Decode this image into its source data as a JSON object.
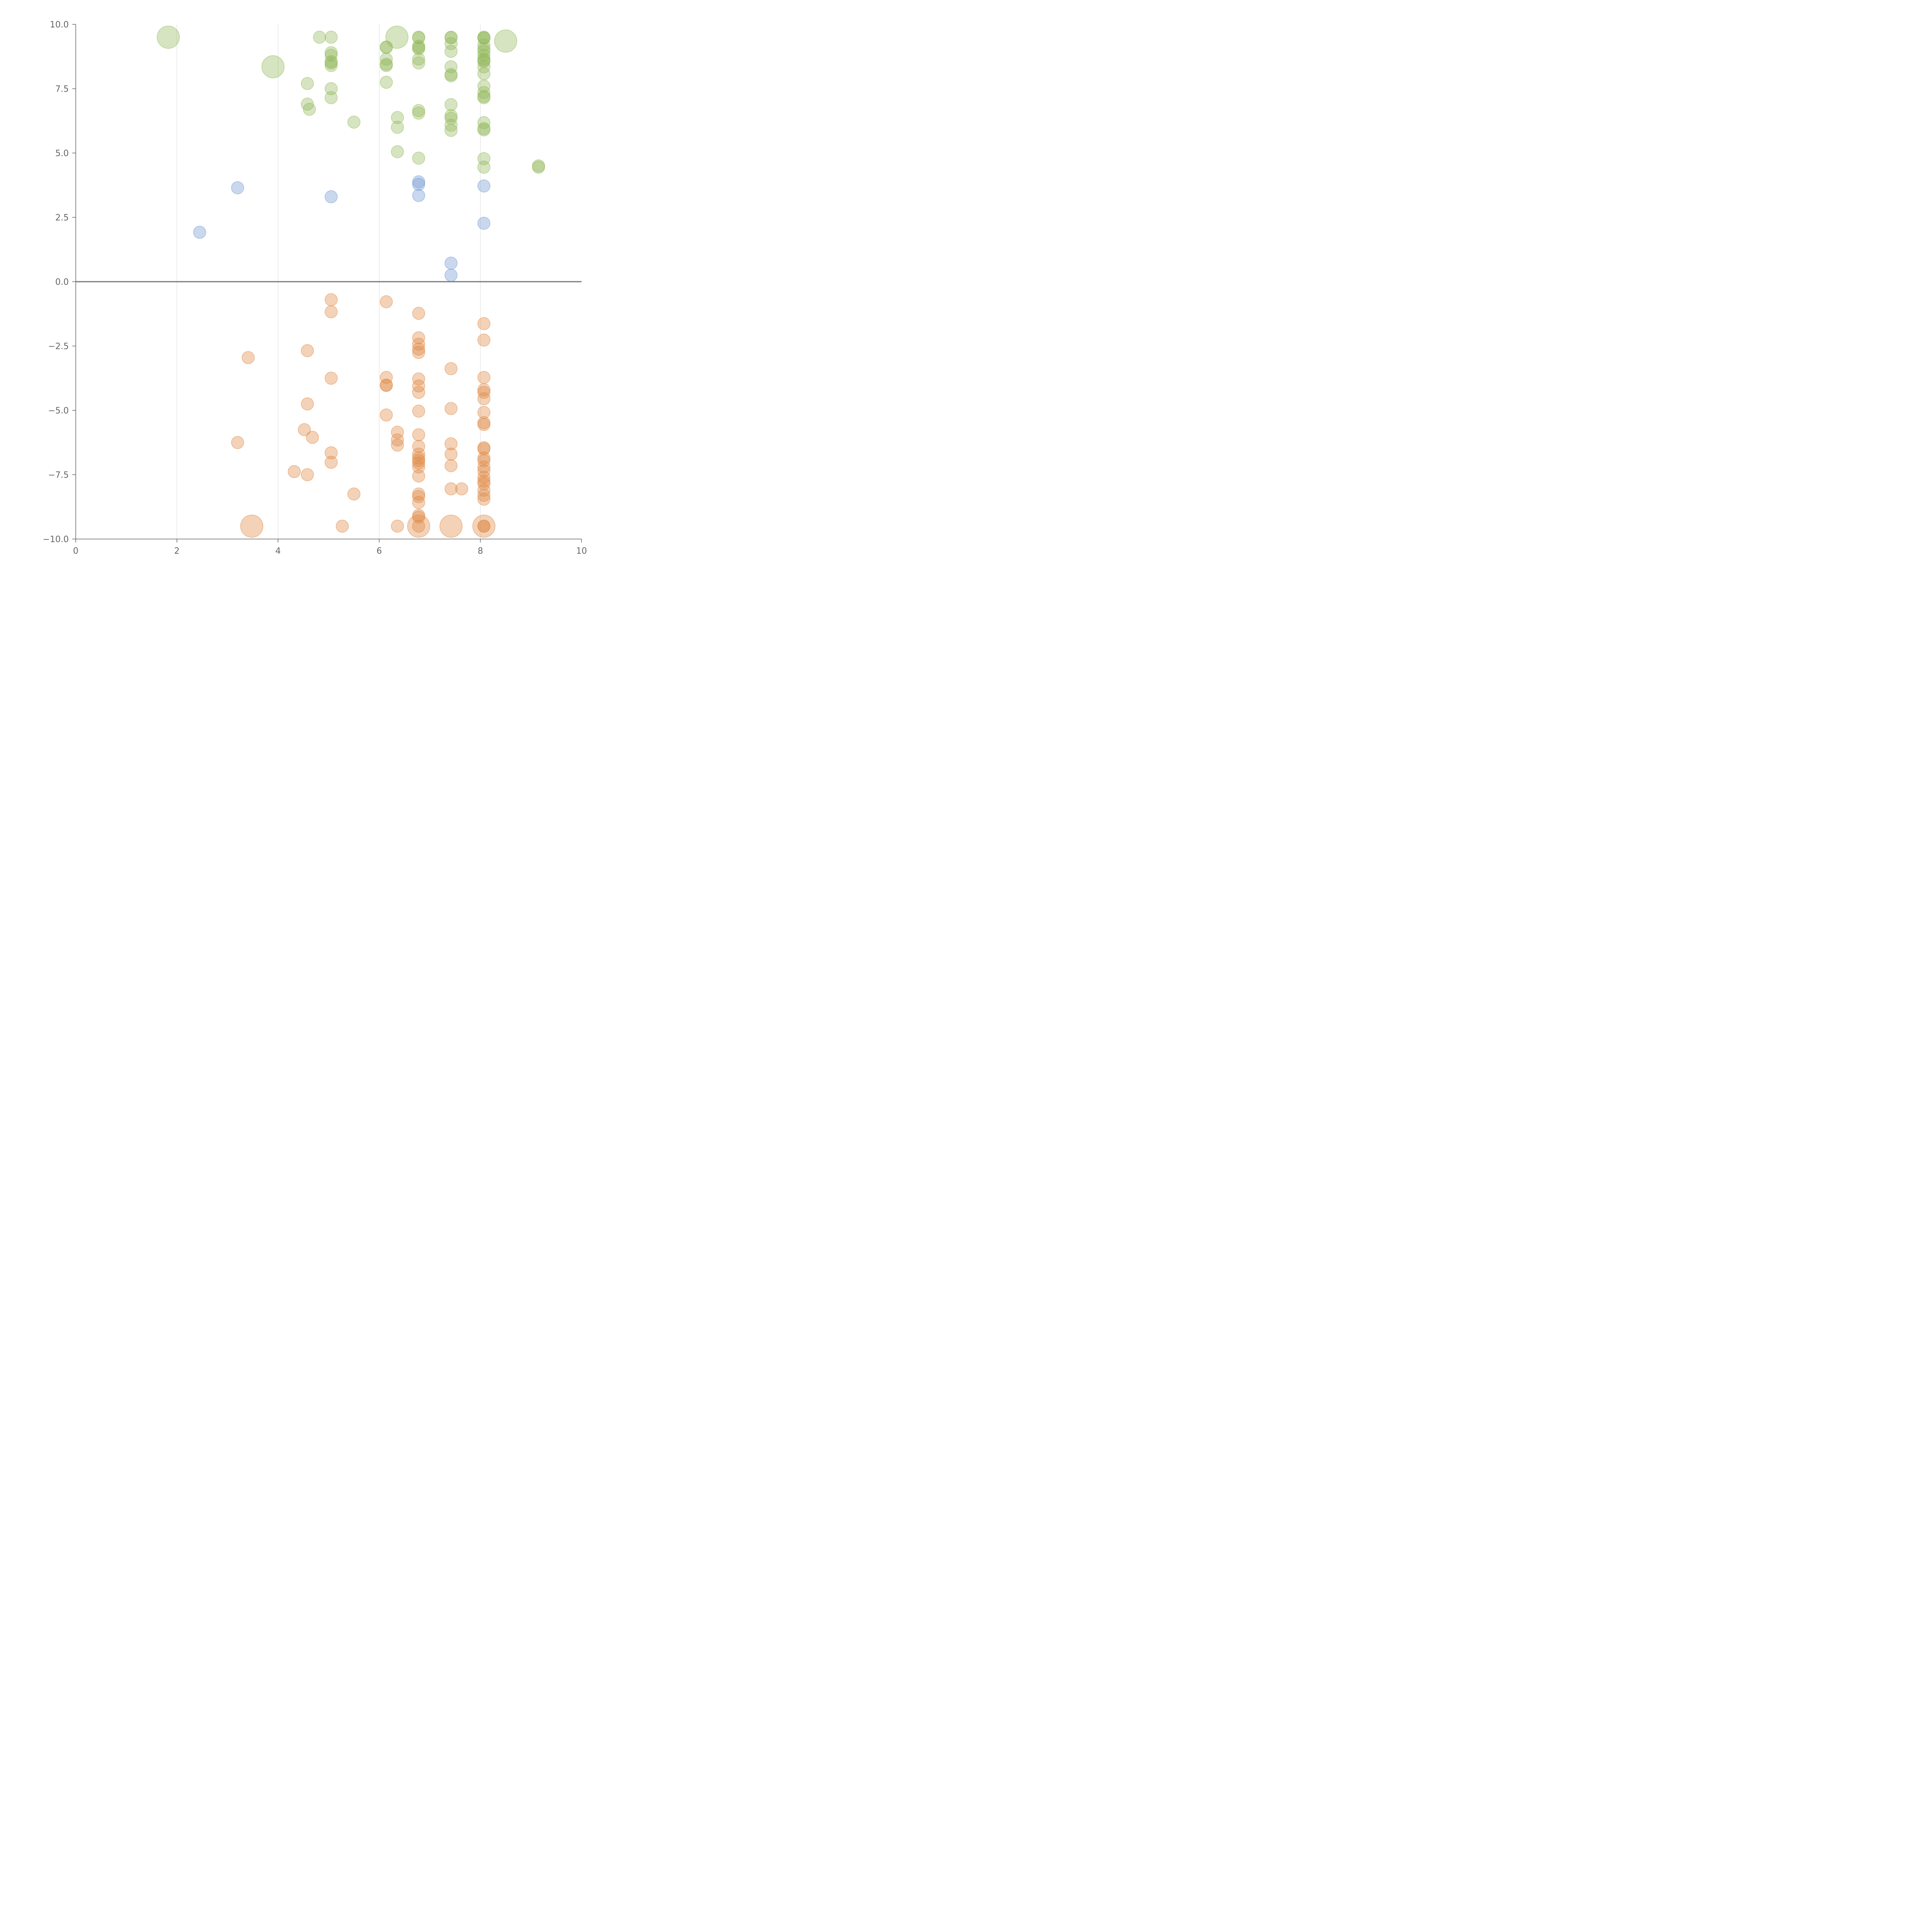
{
  "chart_data": {
    "type": "scatter",
    "title": "",
    "xlabel": "",
    "ylabel": "",
    "xlim": [
      0,
      10
    ],
    "ylim": [
      -10,
      10
    ],
    "grid": "vertical",
    "x_ticks": [
      0,
      2,
      4,
      6,
      8,
      10
    ],
    "y_ticks": [
      10,
      7.5,
      5,
      2.5,
      0,
      -2.5,
      -5,
      -7.5,
      -10
    ],
    "x_tick_labels": [
      "0",
      "2",
      "4",
      "6",
      "8",
      "10"
    ],
    "y_tick_labels": [
      "10.0",
      "7.5",
      "5.0",
      "2.5",
      "0.0",
      "−2.5",
      "−5.0",
      "−7.5",
      "−10.0"
    ],
    "colors": {
      "green": "#93b95b",
      "blue": "#7399d1",
      "orange": "#e08a45"
    },
    "series": [
      {
        "name": "green",
        "color": "#93b95b",
        "points": [
          {
            "x": 1.83,
            "y": 9.5,
            "size": "large"
          },
          {
            "x": 3.9,
            "y": 8.35,
            "size": "large"
          },
          {
            "x": 6.35,
            "y": 9.5,
            "size": "large"
          },
          {
            "x": 8.5,
            "y": 9.35,
            "size": "large"
          },
          {
            "x": 4.82,
            "y": 9.5
          },
          {
            "x": 5.05,
            "y": 9.5
          },
          {
            "x": 5.05,
            "y": 8.9
          },
          {
            "x": 5.05,
            "y": 8.8
          },
          {
            "x": 5.05,
            "y": 8.5
          },
          {
            "x": 5.05,
            "y": 8.4
          },
          {
            "x": 5.05,
            "y": 8.55
          },
          {
            "x": 4.58,
            "y": 7.7
          },
          {
            "x": 5.05,
            "y": 7.5
          },
          {
            "x": 5.05,
            "y": 7.15
          },
          {
            "x": 4.58,
            "y": 6.9
          },
          {
            "x": 4.62,
            "y": 6.7
          },
          {
            "x": 5.5,
            "y": 6.2
          },
          {
            "x": 6.14,
            "y": 9.1
          },
          {
            "x": 6.14,
            "y": 9.12
          },
          {
            "x": 6.14,
            "y": 8.65
          },
          {
            "x": 6.14,
            "y": 8.45
          },
          {
            "x": 6.14,
            "y": 8.4
          },
          {
            "x": 6.14,
            "y": 7.75
          },
          {
            "x": 6.36,
            "y": 6.38
          },
          {
            "x": 6.36,
            "y": 6.0
          },
          {
            "x": 6.36,
            "y": 5.05
          },
          {
            "x": 6.78,
            "y": 9.5
          },
          {
            "x": 6.78,
            "y": 9.48
          },
          {
            "x": 6.78,
            "y": 9.15
          },
          {
            "x": 6.78,
            "y": 9.05
          },
          {
            "x": 6.78,
            "y": 9.1
          },
          {
            "x": 6.78,
            "y": 8.65
          },
          {
            "x": 6.78,
            "y": 8.5
          },
          {
            "x": 6.78,
            "y": 6.65
          },
          {
            "x": 6.78,
            "y": 6.55
          },
          {
            "x": 6.78,
            "y": 4.8
          },
          {
            "x": 7.42,
            "y": 9.5
          },
          {
            "x": 7.42,
            "y": 9.48
          },
          {
            "x": 7.42,
            "y": 9.25
          },
          {
            "x": 7.42,
            "y": 8.95
          },
          {
            "x": 7.42,
            "y": 8.35
          },
          {
            "x": 7.42,
            "y": 8.05
          },
          {
            "x": 7.42,
            "y": 8.0
          },
          {
            "x": 7.42,
            "y": 6.88
          },
          {
            "x": 7.42,
            "y": 6.45
          },
          {
            "x": 7.42,
            "y": 6.35
          },
          {
            "x": 7.42,
            "y": 6.08
          },
          {
            "x": 7.42,
            "y": 5.88
          },
          {
            "x": 8.07,
            "y": 9.5
          },
          {
            "x": 8.07,
            "y": 9.48
          },
          {
            "x": 8.07,
            "y": 9.46
          },
          {
            "x": 8.07,
            "y": 9.2
          },
          {
            "x": 8.07,
            "y": 9.05
          },
          {
            "x": 8.07,
            "y": 8.95
          },
          {
            "x": 8.07,
            "y": 8.8
          },
          {
            "x": 8.07,
            "y": 8.65
          },
          {
            "x": 8.07,
            "y": 8.6
          },
          {
            "x": 8.07,
            "y": 8.55
          },
          {
            "x": 8.07,
            "y": 8.35
          },
          {
            "x": 8.07,
            "y": 8.08
          },
          {
            "x": 8.07,
            "y": 7.6
          },
          {
            "x": 8.07,
            "y": 7.35
          },
          {
            "x": 8.07,
            "y": 7.2
          },
          {
            "x": 8.07,
            "y": 7.15
          },
          {
            "x": 8.07,
            "y": 6.18
          },
          {
            "x": 8.07,
            "y": 5.95
          },
          {
            "x": 8.07,
            "y": 5.9
          },
          {
            "x": 8.07,
            "y": 4.78
          },
          {
            "x": 8.07,
            "y": 4.45
          },
          {
            "x": 9.15,
            "y": 4.5
          },
          {
            "x": 9.15,
            "y": 4.45
          }
        ]
      },
      {
        "name": "blue",
        "color": "#7399d1",
        "points": [
          {
            "x": 2.45,
            "y": 1.92
          },
          {
            "x": 3.2,
            "y": 3.65
          },
          {
            "x": 5.05,
            "y": 3.3
          },
          {
            "x": 6.78,
            "y": 3.88
          },
          {
            "x": 6.78,
            "y": 3.78
          },
          {
            "x": 6.78,
            "y": 3.35
          },
          {
            "x": 7.42,
            "y": 0.72
          },
          {
            "x": 7.42,
            "y": 0.25
          },
          {
            "x": 8.07,
            "y": 3.72
          },
          {
            "x": 8.07,
            "y": 2.27
          }
        ]
      },
      {
        "name": "orange",
        "color": "#e08a45",
        "points": [
          {
            "x": 3.48,
            "y": -9.5,
            "size": "large"
          },
          {
            "x": 6.78,
            "y": -9.5,
            "size": "large"
          },
          {
            "x": 7.42,
            "y": -9.5,
            "size": "large"
          },
          {
            "x": 8.07,
            "y": -9.5,
            "size": "large"
          },
          {
            "x": 3.41,
            "y": -2.95
          },
          {
            "x": 3.2,
            "y": -6.25
          },
          {
            "x": 4.32,
            "y": -7.38
          },
          {
            "x": 4.58,
            "y": -7.5
          },
          {
            "x": 4.52,
            "y": -5.75
          },
          {
            "x": 4.68,
            "y": -6.05
          },
          {
            "x": 4.58,
            "y": -4.75
          },
          {
            "x": 4.58,
            "y": -2.68
          },
          {
            "x": 5.05,
            "y": -0.7
          },
          {
            "x": 5.05,
            "y": -1.17
          },
          {
            "x": 5.05,
            "y": -3.75
          },
          {
            "x": 5.05,
            "y": -6.65
          },
          {
            "x": 5.05,
            "y": -7.02
          },
          {
            "x": 5.27,
            "y": -9.5
          },
          {
            "x": 5.5,
            "y": -8.25
          },
          {
            "x": 6.14,
            "y": -0.78
          },
          {
            "x": 6.14,
            "y": -3.72
          },
          {
            "x": 6.14,
            "y": -4.02
          },
          {
            "x": 6.14,
            "y": -4.03
          },
          {
            "x": 6.14,
            "y": -5.18
          },
          {
            "x": 6.36,
            "y": -5.85
          },
          {
            "x": 6.36,
            "y": -6.15
          },
          {
            "x": 6.36,
            "y": -6.35
          },
          {
            "x": 6.36,
            "y": -9.5
          },
          {
            "x": 6.78,
            "y": -1.23
          },
          {
            "x": 6.78,
            "y": -2.18
          },
          {
            "x": 6.78,
            "y": -2.43
          },
          {
            "x": 6.78,
            "y": -2.62
          },
          {
            "x": 6.78,
            "y": -2.75
          },
          {
            "x": 6.78,
            "y": -3.78
          },
          {
            "x": 6.78,
            "y": -4.05
          },
          {
            "x": 6.78,
            "y": -4.3
          },
          {
            "x": 6.78,
            "y": -5.03
          },
          {
            "x": 6.78,
            "y": -5.95
          },
          {
            "x": 6.78,
            "y": -6.4
          },
          {
            "x": 6.78,
            "y": -6.7
          },
          {
            "x": 6.78,
            "y": -6.85
          },
          {
            "x": 6.78,
            "y": -6.95
          },
          {
            "x": 6.78,
            "y": -7.05
          },
          {
            "x": 6.78,
            "y": -7.2
          },
          {
            "x": 6.78,
            "y": -7.55
          },
          {
            "x": 6.78,
            "y": -8.25
          },
          {
            "x": 6.78,
            "y": -8.35
          },
          {
            "x": 6.78,
            "y": -8.58
          },
          {
            "x": 6.78,
            "y": -9.08
          },
          {
            "x": 6.78,
            "y": -9.15
          },
          {
            "x": 6.78,
            "y": -9.5
          },
          {
            "x": 7.42,
            "y": -3.38
          },
          {
            "x": 7.42,
            "y": -4.93
          },
          {
            "x": 7.42,
            "y": -6.3
          },
          {
            "x": 7.42,
            "y": -6.7
          },
          {
            "x": 7.42,
            "y": -7.15
          },
          {
            "x": 7.42,
            "y": -8.05
          },
          {
            "x": 7.63,
            "y": -8.05
          },
          {
            "x": 8.07,
            "y": -1.63
          },
          {
            "x": 8.07,
            "y": -2.27
          },
          {
            "x": 8.07,
            "y": -3.72
          },
          {
            "x": 8.07,
            "y": -4.2
          },
          {
            "x": 8.07,
            "y": -4.3
          },
          {
            "x": 8.07,
            "y": -4.55
          },
          {
            "x": 8.07,
            "y": -5.08
          },
          {
            "x": 8.07,
            "y": -5.48
          },
          {
            "x": 8.07,
            "y": -5.55
          },
          {
            "x": 8.07,
            "y": -6.45
          },
          {
            "x": 8.07,
            "y": -6.5
          },
          {
            "x": 8.07,
            "y": -6.85
          },
          {
            "x": 8.07,
            "y": -6.95
          },
          {
            "x": 8.07,
            "y": -7.2
          },
          {
            "x": 8.07,
            "y": -7.35
          },
          {
            "x": 8.07,
            "y": -7.6
          },
          {
            "x": 8.07,
            "y": -7.75
          },
          {
            "x": 8.07,
            "y": -7.85
          },
          {
            "x": 8.07,
            "y": -8.1
          },
          {
            "x": 8.07,
            "y": -8.3
          },
          {
            "x": 8.07,
            "y": -8.45
          },
          {
            "x": 8.07,
            "y": -9.5
          },
          {
            "x": 8.07,
            "y": -9.5
          }
        ]
      }
    ]
  }
}
